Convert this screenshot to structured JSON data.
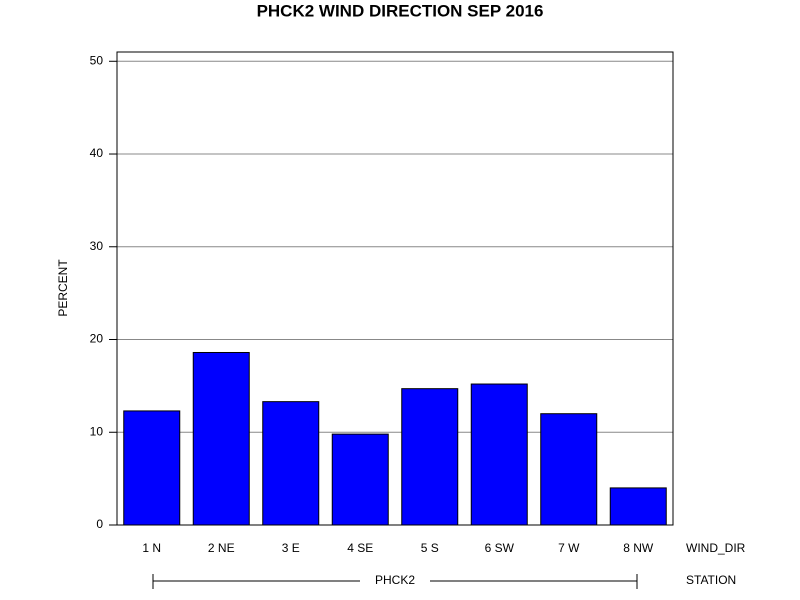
{
  "chart_data": {
    "type": "bar",
    "title": "PHCK2 WIND DIRECTION SEP 2016",
    "y_label": "PERCENT",
    "x_label": "WIND_DIR",
    "group_axis_label": "STATION",
    "group": "PHCK2",
    "categories": [
      "1 N",
      "2 NE",
      "3 E",
      "4 SE",
      "5 S",
      "6 SW",
      "7 W",
      "8 NW"
    ],
    "values": [
      12.3,
      18.6,
      13.3,
      9.8,
      14.7,
      15.2,
      12.0,
      4.0
    ],
    "color": "#0000ff",
    "ylim": [
      0,
      51
    ],
    "yticks": [
      0,
      10,
      20,
      30,
      40,
      50
    ],
    "grid": true
  }
}
